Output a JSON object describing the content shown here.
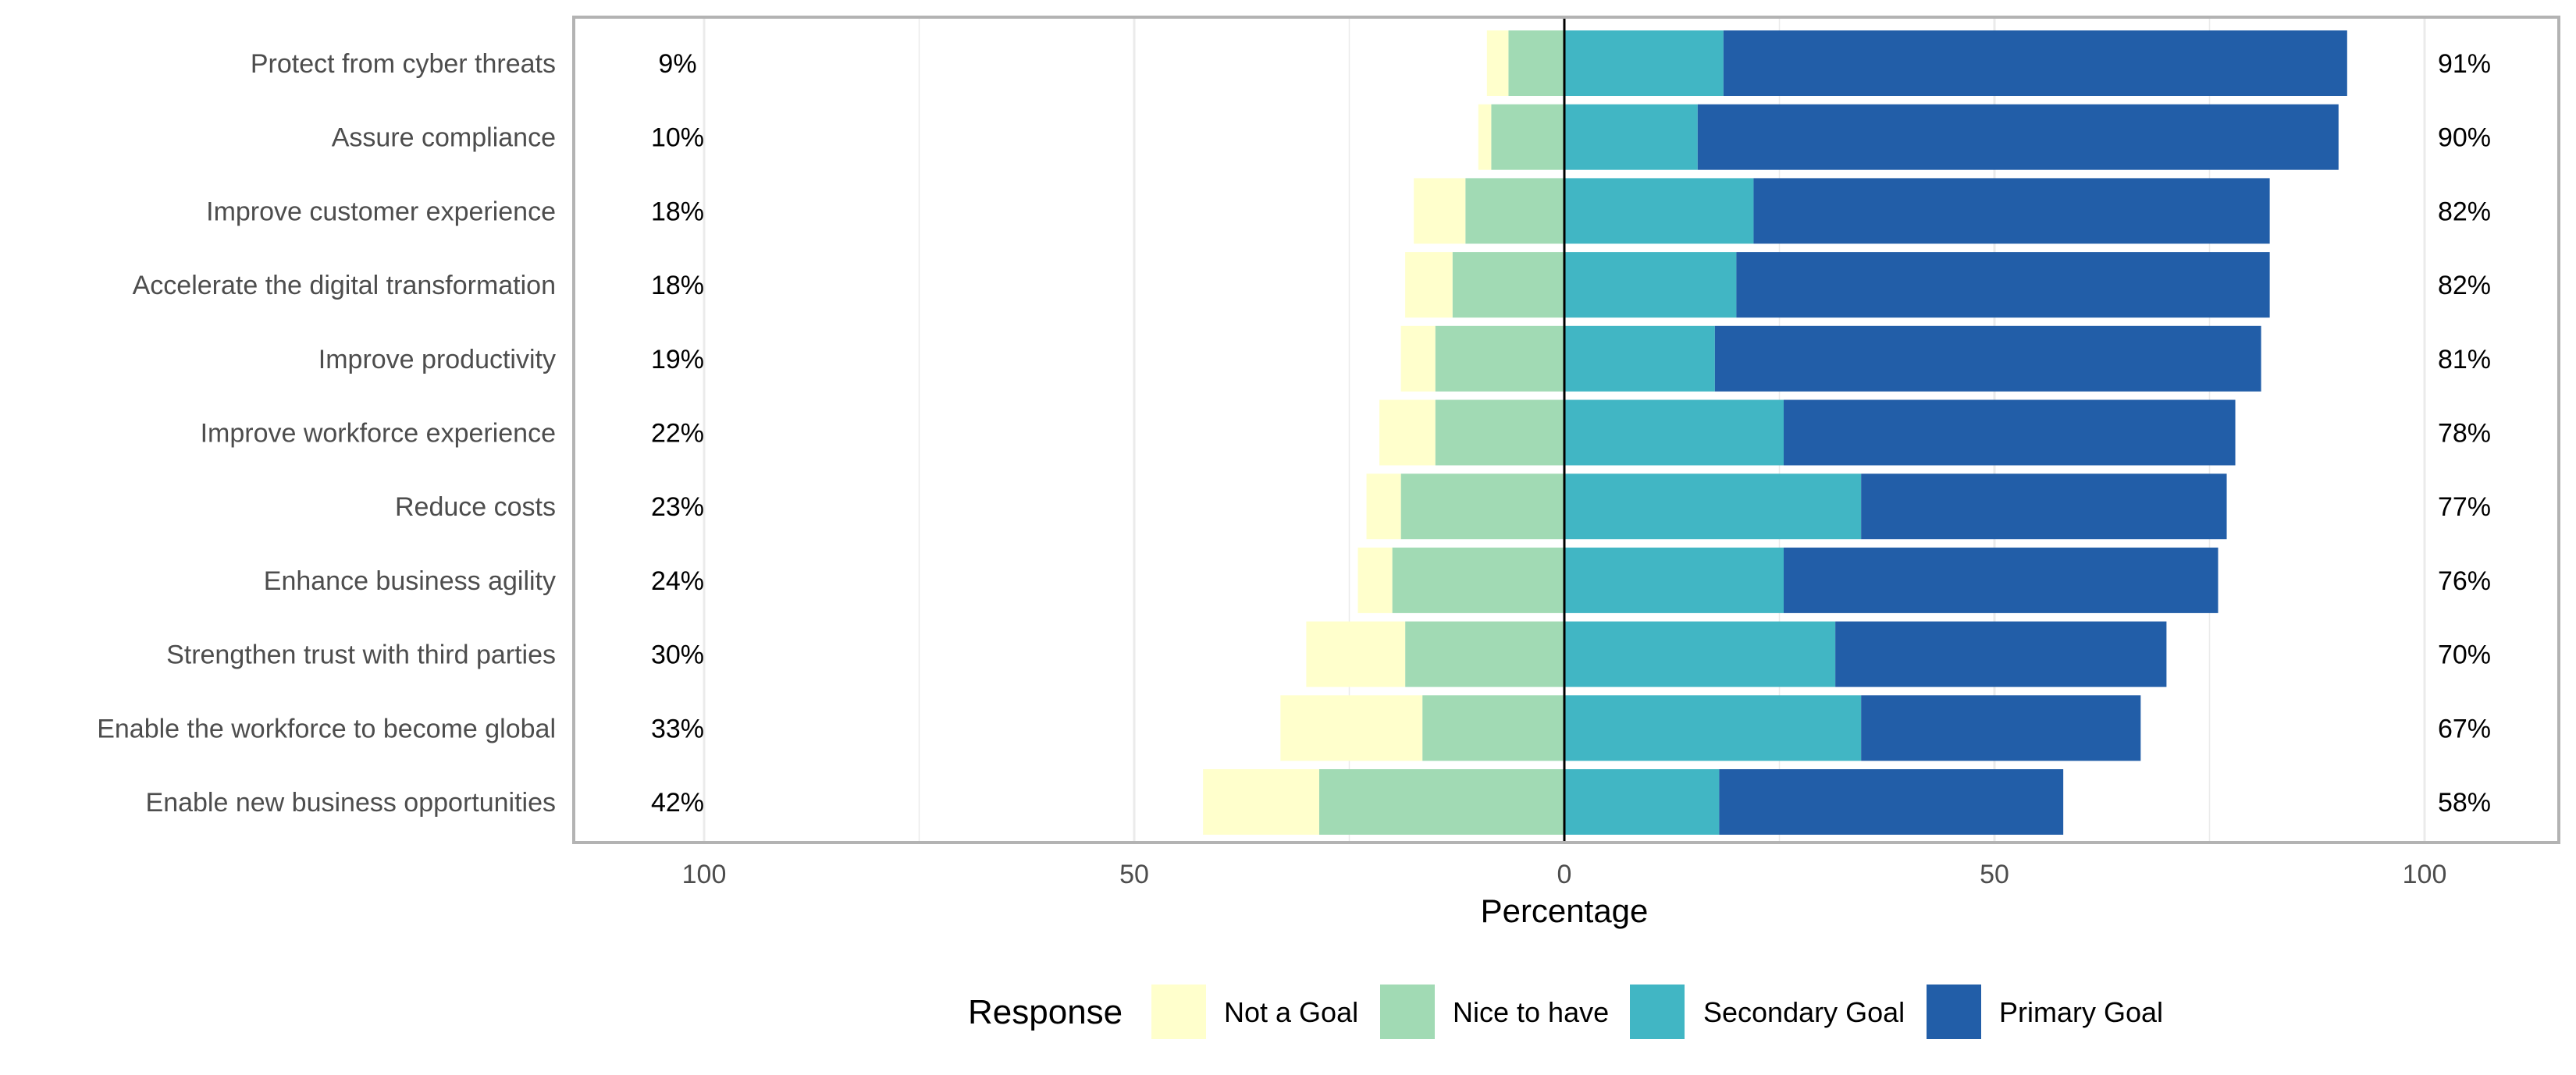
{
  "chart_data": {
    "type": "bar",
    "orientation": "horizontal",
    "stacking": "diverging",
    "categories": [
      "Protect from cyber threats",
      "Assure compliance",
      "Improve customer experience",
      "Accelerate the digital transformation",
      "Improve productivity",
      "Improve workforce experience",
      "Reduce costs",
      "Enhance business agility",
      "Strengthen trust with third parties",
      "Enable the workforce to become global",
      "Enable new business opportunities"
    ],
    "series": [
      {
        "name": "Not a Goal",
        "color": "#ffffcc",
        "side": "negative",
        "values": [
          2.5,
          1.5,
          6,
          5.5,
          4,
          6.5,
          4,
          4,
          11.5,
          16.5,
          13.5
        ]
      },
      {
        "name": "Nice to have",
        "color": "#a1dab4",
        "side": "negative",
        "values": [
          6.5,
          8.5,
          11.5,
          13,
          15,
          15,
          19,
          20,
          18.5,
          16.5,
          28.5
        ]
      },
      {
        "name": "Secondary Goal",
        "color": "#41b6c4",
        "side": "positive",
        "values": [
          18.5,
          15.5,
          22,
          20,
          17.5,
          25.5,
          34.5,
          25.5,
          31.5,
          34.5,
          18
        ]
      },
      {
        "name": "Primary Goal",
        "color": "#225ea8",
        "side": "positive",
        "values": [
          72.5,
          74.5,
          60,
          62,
          63.5,
          52.5,
          42.5,
          50.5,
          38.5,
          32.5,
          40
        ]
      }
    ],
    "left_totals": [
      "9%",
      "10%",
      "18%",
      "18%",
      "19%",
      "22%",
      "23%",
      "24%",
      "30%",
      "33%",
      "42%"
    ],
    "right_totals": [
      "91%",
      "90%",
      "82%",
      "82%",
      "81%",
      "78%",
      "77%",
      "76%",
      "70%",
      "67%",
      "58%"
    ],
    "xlim": [
      -100,
      100
    ],
    "xticks": [
      -100,
      -50,
      0,
      50,
      100
    ],
    "xtick_labels": [
      "100",
      "50",
      "0",
      "50",
      "100"
    ],
    "xlabel": "Percentage",
    "ylabel": "",
    "legend": {
      "title": "Response",
      "position": "bottom",
      "items": [
        "Not a Goal",
        "Nice to have",
        "Secondary Goal",
        "Primary Goal"
      ]
    },
    "grid": true
  }
}
